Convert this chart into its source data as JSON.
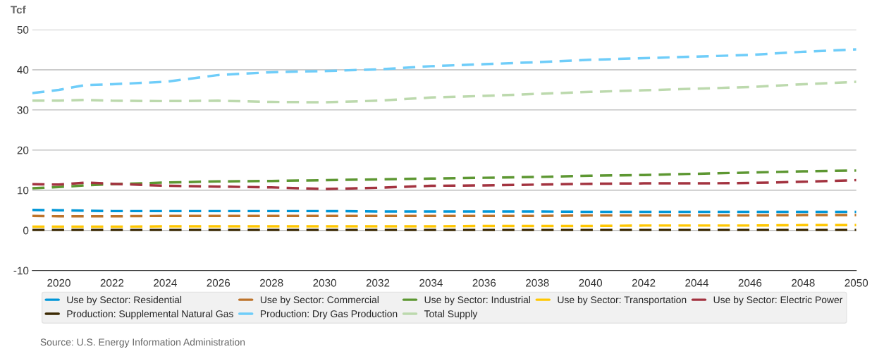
{
  "chart_data": {
    "type": "line",
    "ylabel": "Tcf",
    "x": [
      2019,
      2020,
      2021,
      2022,
      2024,
      2026,
      2028,
      2030,
      2032,
      2034,
      2036,
      2038,
      2040,
      2042,
      2044,
      2046,
      2048,
      2050
    ],
    "series": [
      {
        "name": "Use by Sector: Residential",
        "color": "#0096d7",
        "values": [
          5.1,
          5.0,
          4.9,
          4.8,
          4.8,
          4.8,
          4.8,
          4.8,
          4.7,
          4.7,
          4.7,
          4.7,
          4.6,
          4.6,
          4.6,
          4.6,
          4.6,
          4.6
        ]
      },
      {
        "name": "Use by Sector: Commercial",
        "color": "#bd732a",
        "values": [
          3.6,
          3.5,
          3.5,
          3.5,
          3.6,
          3.6,
          3.6,
          3.6,
          3.6,
          3.6,
          3.6,
          3.6,
          3.7,
          3.7,
          3.7,
          3.7,
          3.8,
          3.8
        ]
      },
      {
        "name": "Use by Sector: Industrial",
        "color": "#5d9732",
        "values": [
          10.5,
          10.8,
          11.2,
          11.5,
          11.9,
          12.2,
          12.3,
          12.5,
          12.7,
          12.9,
          13.1,
          13.3,
          13.6,
          13.8,
          14.1,
          14.4,
          14.7,
          14.9
        ]
      },
      {
        "name": "Use by Sector: Transportation",
        "color": "#ffc702",
        "values": [
          0.9,
          0.9,
          0.9,
          0.9,
          1.0,
          1.0,
          1.0,
          1.0,
          1.0,
          1.0,
          1.1,
          1.1,
          1.1,
          1.2,
          1.2,
          1.2,
          1.3,
          1.3
        ]
      },
      {
        "name": "Use by Sector: Electric Power",
        "color": "#a33340",
        "values": [
          11.5,
          11.4,
          11.9,
          11.6,
          11.1,
          10.9,
          10.7,
          10.3,
          10.6,
          11.1,
          11.2,
          11.4,
          11.6,
          11.7,
          11.7,
          11.8,
          12.1,
          12.5
        ]
      },
      {
        "name": "Production: Supplemental Natural Gas",
        "color": "#3d2b05",
        "values": [
          0.1,
          0.1,
          0.1,
          0.1,
          0.1,
          0.1,
          0.1,
          0.1,
          0.1,
          0.1,
          0.1,
          0.1,
          0.1,
          0.1,
          0.1,
          0.1,
          0.1,
          0.1
        ]
      },
      {
        "name": "Production: Dry Gas Production",
        "color": "#6fcdf9",
        "values": [
          34.2,
          35.0,
          36.2,
          36.4,
          37.0,
          38.7,
          39.4,
          39.7,
          40.1,
          40.9,
          41.4,
          41.9,
          42.5,
          42.9,
          43.3,
          43.7,
          44.5,
          45.1
        ]
      },
      {
        "name": "Total Supply",
        "color": "#bcd9ad",
        "values": [
          32.3,
          32.3,
          32.5,
          32.3,
          32.2,
          32.3,
          32.0,
          31.9,
          32.3,
          33.1,
          33.5,
          34.0,
          34.5,
          34.9,
          35.3,
          35.7,
          36.4,
          37.0
        ]
      }
    ],
    "xlim": [
      2019,
      2050
    ],
    "xticks": [
      2020,
      2022,
      2024,
      2026,
      2028,
      2030,
      2032,
      2034,
      2036,
      2038,
      2040,
      2042,
      2044,
      2046,
      2048,
      2050
    ],
    "ylim": [
      -10,
      50
    ],
    "yticks": [
      -10,
      0,
      10,
      20,
      30,
      40,
      50
    ],
    "grid": "y",
    "legend": "bottom",
    "line_style": "dashed",
    "marker": "none",
    "annotations": [
      "Source: U.S. Energy Information Administration"
    ]
  }
}
